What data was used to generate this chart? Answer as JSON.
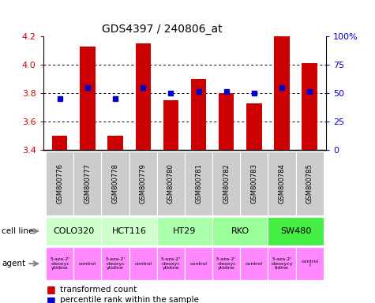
{
  "title": "GDS4397 / 240806_at",
  "samples": [
    "GSM800776",
    "GSM800777",
    "GSM800778",
    "GSM800779",
    "GSM800780",
    "GSM800781",
    "GSM800782",
    "GSM800783",
    "GSM800784",
    "GSM800785"
  ],
  "red_values": [
    3.5,
    4.13,
    3.5,
    4.15,
    3.75,
    3.9,
    3.8,
    3.73,
    4.2,
    4.01
  ],
  "blue_values": [
    3.76,
    3.84,
    3.76,
    3.84,
    3.8,
    3.81,
    3.81,
    3.8,
    3.84,
    3.81
  ],
  "ylim_left": [
    3.4,
    4.2
  ],
  "ylim_right": [
    0,
    100
  ],
  "red_color": "#cc0000",
  "blue_color": "#0000cc",
  "bar_width": 0.55,
  "yticks_left": [
    3.4,
    3.6,
    3.8,
    4.0,
    4.2
  ],
  "yticks_right": [
    0,
    25,
    50,
    75,
    100
  ],
  "ytick_labels_right": [
    "0",
    "25",
    "50",
    "75",
    "100%"
  ],
  "legend_red": "transformed count",
  "legend_blue": "percentile rank within the sample",
  "cell_line_label": "cell line",
  "agent_label": "agent",
  "cell_lines": [
    {
      "label": "COLO320",
      "start": 0,
      "end": 2,
      "color": "#ccffcc"
    },
    {
      "label": "HCT116",
      "start": 2,
      "end": 4,
      "color": "#ccffcc"
    },
    {
      "label": "HT29",
      "start": 4,
      "end": 6,
      "color": "#aaffaa"
    },
    {
      "label": "RKO",
      "start": 6,
      "end": 8,
      "color": "#99ff99"
    },
    {
      "label": "SW480",
      "start": 8,
      "end": 10,
      "color": "#44ee44"
    }
  ],
  "agent_labels": [
    "5-aza-2'\n-deoxyc\nytidine",
    "control",
    "5-aza-2'\n-deoxyc\nytidine",
    "control",
    "5-aza-2'\n-deoxyc\nytidine",
    "control",
    "5-aza-2'\n-deoxyc\nytidine",
    "control",
    "5-aza-2'\n-deoxycy\ntidine",
    "control\nl"
  ],
  "agent_color": "#ff88ff",
  "sample_color": "#cccccc"
}
